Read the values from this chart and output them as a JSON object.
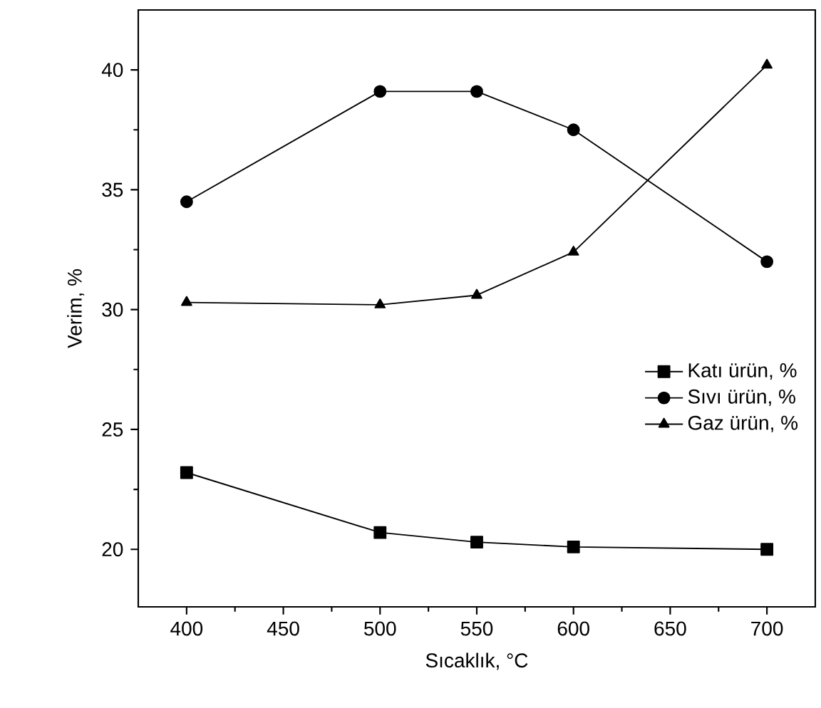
{
  "chart_data": {
    "type": "line",
    "xlabel": "Sıcaklık, °C",
    "ylabel": "Verim, %",
    "x": [
      400,
      500,
      550,
      600,
      700
    ],
    "series": [
      {
        "name": "Katı ürün, %",
        "color": "#000000",
        "marker": "square",
        "values": [
          23.2,
          20.7,
          20.3,
          20.1,
          20.0
        ]
      },
      {
        "name": "Sıvı ürün, %",
        "color": "#000000",
        "marker": "circle",
        "values": [
          34.5,
          39.1,
          39.1,
          37.5,
          32.0
        ]
      },
      {
        "name": "Gaz ürün, %",
        "color": "#000000",
        "marker": "triangle",
        "values": [
          30.3,
          30.2,
          30.6,
          32.4,
          40.2
        ]
      }
    ],
    "xlim": [
      375,
      725
    ],
    "ylim": [
      17.6,
      42.5
    ],
    "xticks": [
      400,
      450,
      500,
      550,
      600,
      650,
      700
    ],
    "yticks": [
      20,
      25,
      30,
      35,
      40
    ],
    "legend": "right",
    "grid": false,
    "line_style": "solid"
  }
}
